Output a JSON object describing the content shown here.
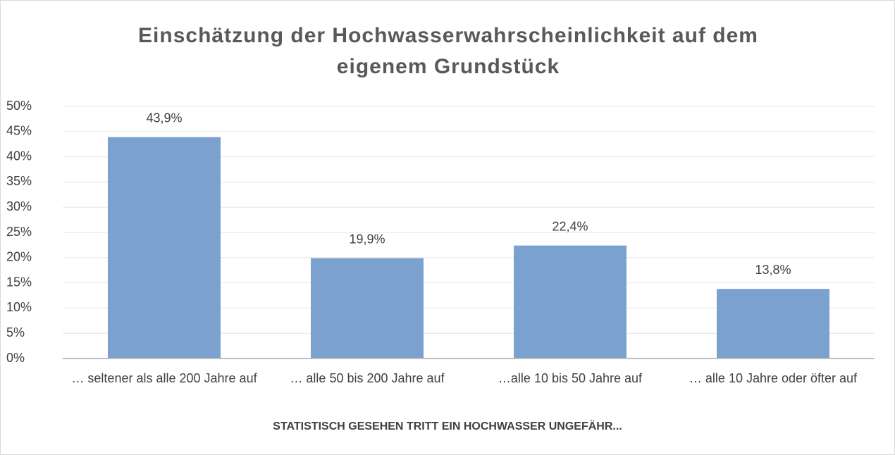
{
  "chart_data": {
    "type": "bar",
    "title": "Einschätzung der Hochwasserwahrscheinlichkeit auf dem eigenem Grundstück",
    "x_label": "STATISTISCH GESEHEN TRITT EIN HOCHWASSER UNGEFÄHR...",
    "categories": [
      "… seltener als alle 200 Jahre auf",
      "… alle 50 bis 200 Jahre auf",
      "…alle 10 bis 50 Jahre auf",
      "… alle 10 Jahre oder öfter auf"
    ],
    "values": [
      43.9,
      19.9,
      22.4,
      13.8
    ],
    "value_labels": [
      "43,9%",
      "19,9%",
      "22,4%",
      "13,8%"
    ],
    "color": "#7ba1cf",
    "ylim": [
      0,
      50
    ],
    "yticks": [
      {
        "value": 0,
        "label": "0%"
      },
      {
        "value": 5,
        "label": "5%"
      },
      {
        "value": 10,
        "label": "10%"
      },
      {
        "value": 15,
        "label": "15%"
      },
      {
        "value": 20,
        "label": "20%"
      },
      {
        "value": 25,
        "label": "25%"
      },
      {
        "value": 30,
        "label": "30%"
      },
      {
        "value": 35,
        "label": "35%"
      },
      {
        "value": 40,
        "label": "40%"
      },
      {
        "value": 45,
        "label": "45%"
      },
      {
        "value": 50,
        "label": "50%"
      }
    ],
    "grid": true
  }
}
